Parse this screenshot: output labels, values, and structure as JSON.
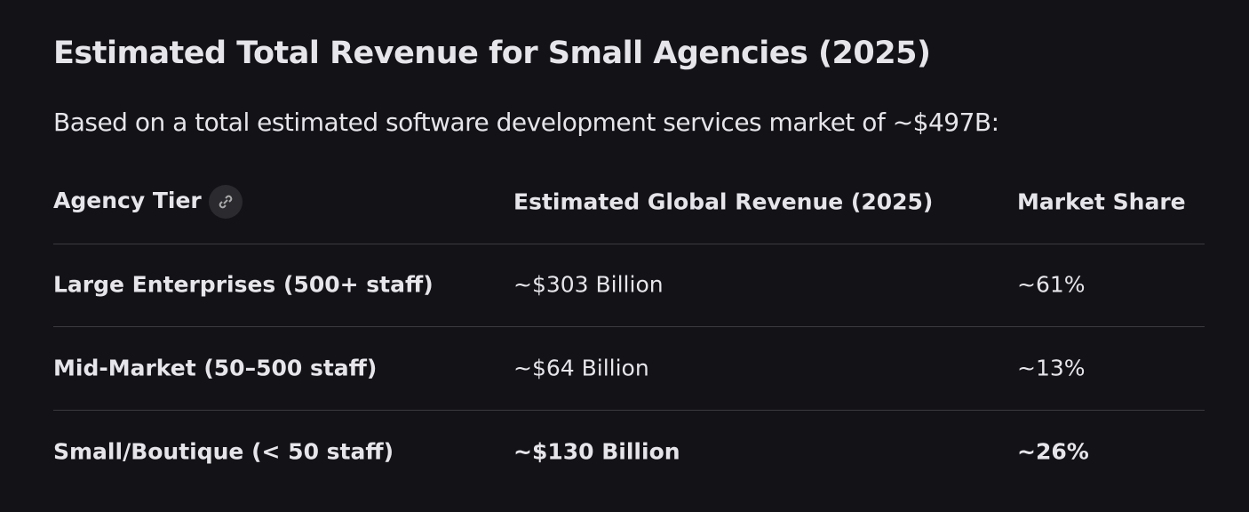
{
  "header": {
    "title": "Estimated Total Revenue for Small Agencies (2025)",
    "subtitle": "Based on a total estimated software development services market of ~$497B:"
  },
  "table": {
    "columns": [
      "Agency Tier",
      "Estimated Global Revenue (2025)",
      "Market Share"
    ],
    "rows": [
      [
        "Large Enterprises (500+ staff)",
        "~$303 Billion",
        "~61%"
      ],
      [
        "Mid-Market (50–500 staff)",
        "~$64 Billion",
        "~13%"
      ],
      [
        "Small/Boutique (< 50 staff)",
        "~$130 Billion",
        "~26%"
      ]
    ]
  }
}
